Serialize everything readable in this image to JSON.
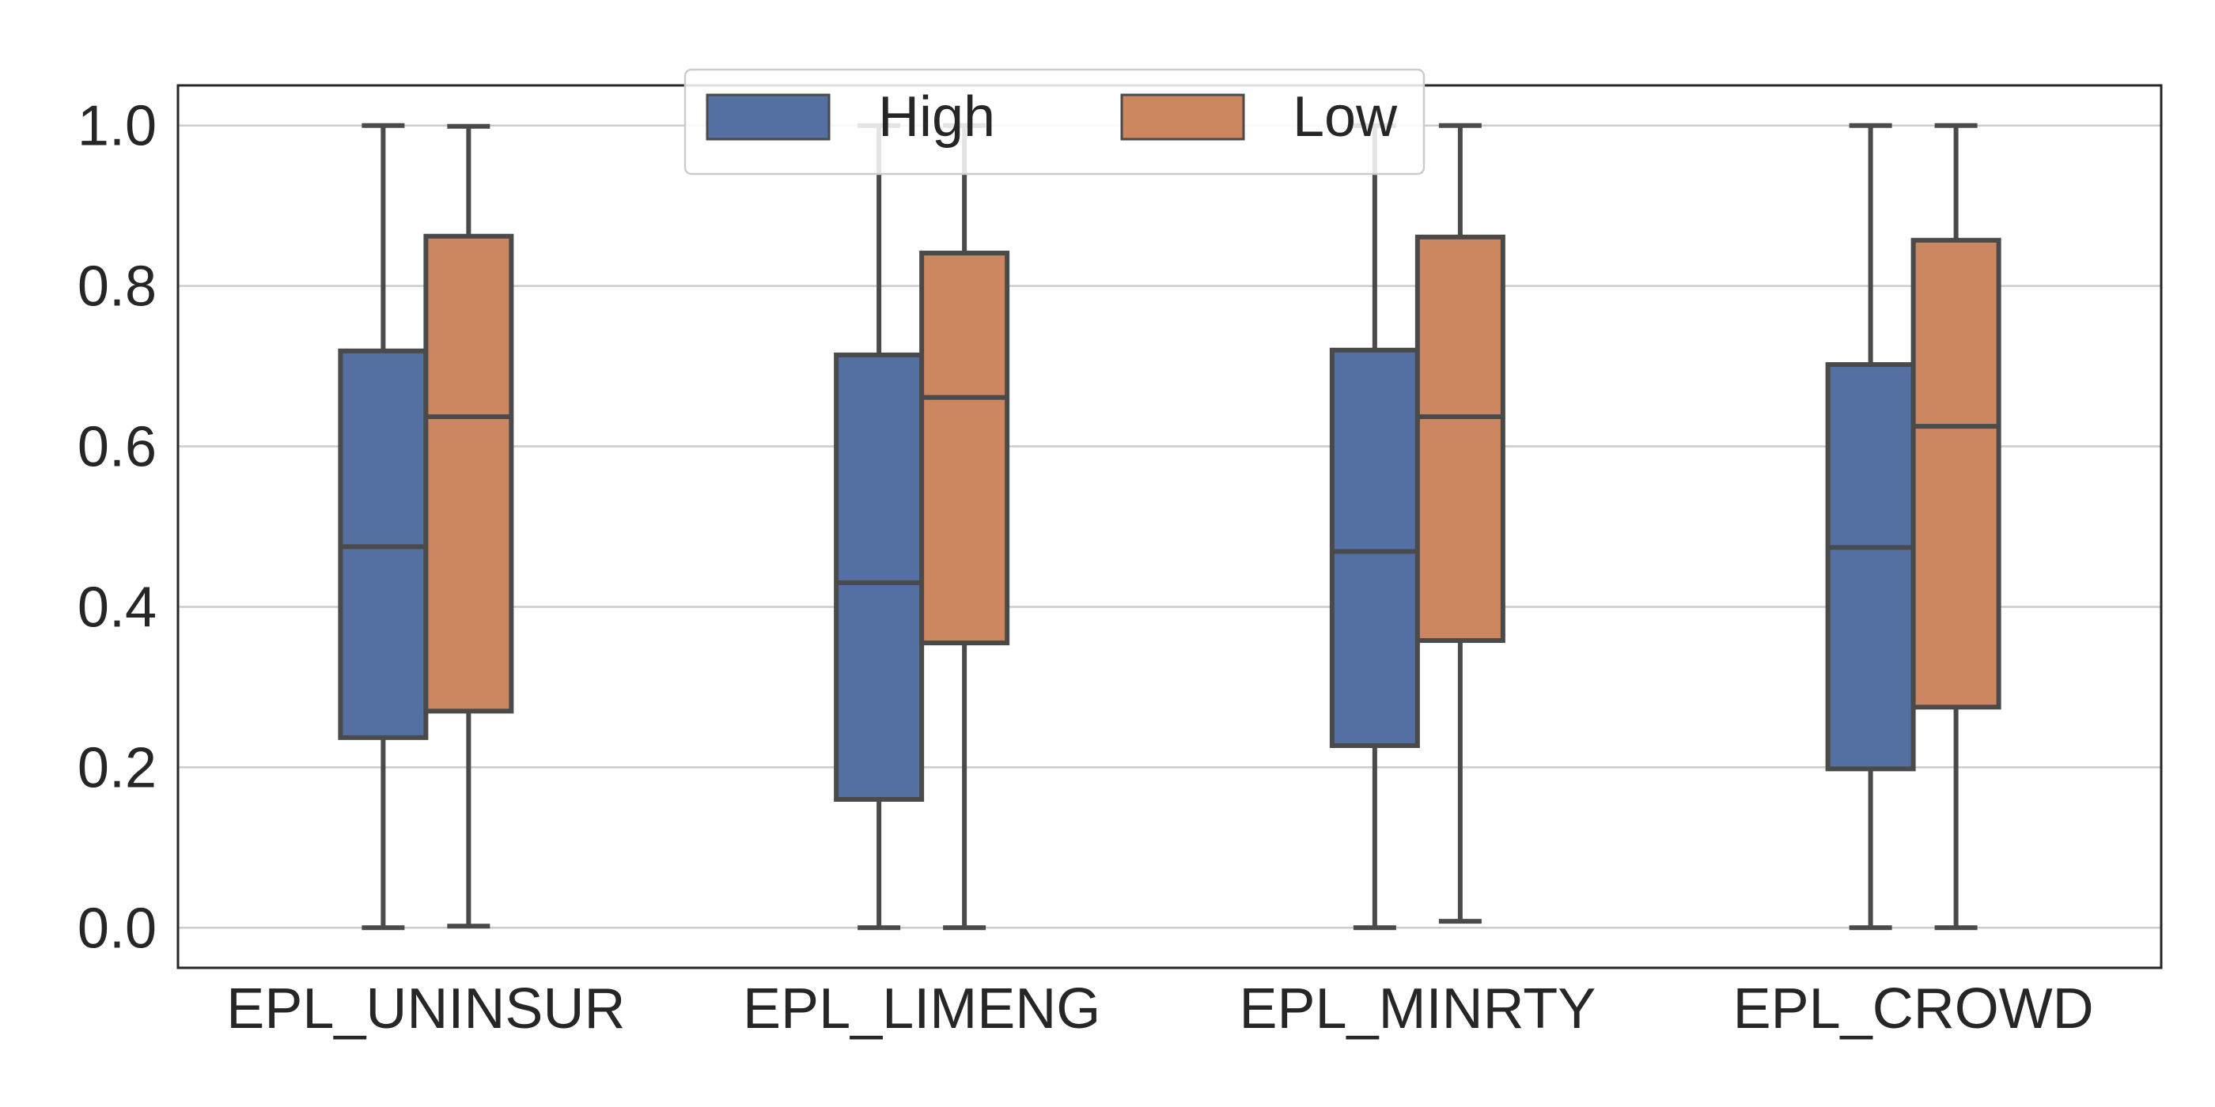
{
  "chart_data": {
    "type": "box",
    "categories": [
      "EPL_UNINSUR",
      "EPL_LIMENG",
      "EPL_MINRTY",
      "EPL_CROWD"
    ],
    "series": [
      {
        "name": "High",
        "color": "#5470a3",
        "boxes": [
          {
            "min": 0.0,
            "q1": 0.237,
            "median": 0.475,
            "q3": 0.719,
            "max": 1.0
          },
          {
            "min": 0.0,
            "q1": 0.16,
            "median": 0.43,
            "q3": 0.714,
            "max": 1.0
          },
          {
            "min": 0.0,
            "q1": 0.227,
            "median": 0.469,
            "q3": 0.72,
            "max": 1.0
          },
          {
            "min": 0.0,
            "q1": 0.198,
            "median": 0.474,
            "q3": 0.702,
            "max": 1.0
          }
        ]
      },
      {
        "name": "Low",
        "color": "#cc8660",
        "boxes": [
          {
            "min": 0.002,
            "q1": 0.27,
            "median": 0.637,
            "q3": 0.862,
            "max": 0.999
          },
          {
            "min": 0.0,
            "q1": 0.355,
            "median": 0.661,
            "q3": 0.841,
            "max": 1.0
          },
          {
            "min": 0.008,
            "q1": 0.358,
            "median": 0.637,
            "q3": 0.861,
            "max": 1.0
          },
          {
            "min": 0.0,
            "q1": 0.275,
            "median": 0.625,
            "q3": 0.857,
            "max": 1.0
          }
        ]
      }
    ],
    "ylim": [
      -0.05,
      1.05
    ],
    "yticks": [
      0.0,
      0.2,
      0.4,
      0.6,
      0.8,
      1.0
    ],
    "ytick_labels": [
      "0.0",
      "0.2",
      "0.4",
      "0.6",
      "0.8",
      "1.0"
    ],
    "grid": "horizontal",
    "legend_position": "top-center",
    "xlabel": "",
    "ylabel": "",
    "title": ""
  }
}
